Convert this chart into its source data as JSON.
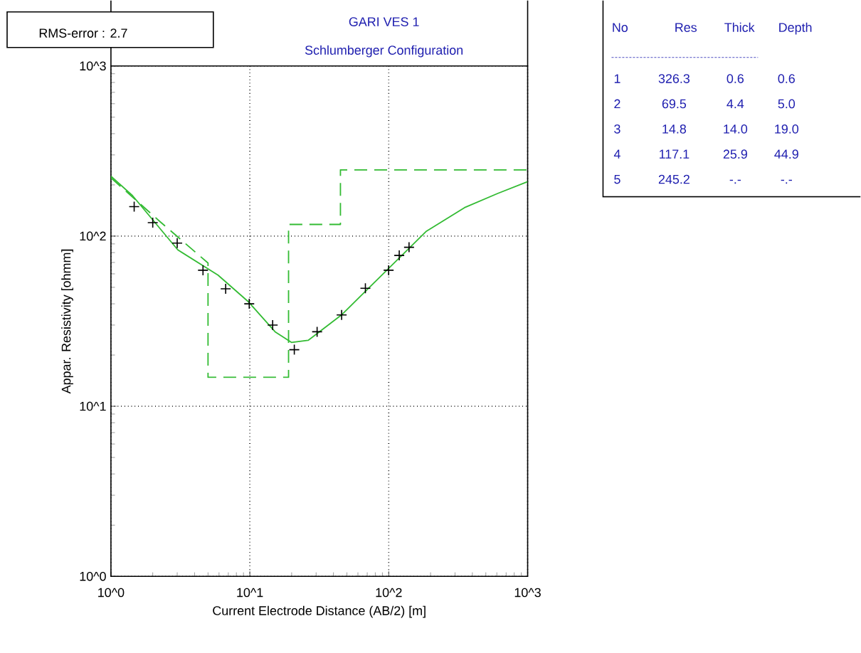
{
  "chart_data": {
    "type": "line",
    "title": "GARI VES 1",
    "subtitle": "Schlumberger Configuration",
    "xlabel": "Current Electrode Distance (AB/2) [m]",
    "ylabel": "Appar. Resistivity [ohmm]",
    "log": "xy",
    "grid": true,
    "xlim": [
      1,
      1000
    ],
    "ylim": [
      1,
      1000
    ],
    "xticks": [
      {
        "value": 1,
        "label": "10^0"
      },
      {
        "value": 10,
        "label": "10^1"
      },
      {
        "value": 100,
        "label": "10^2"
      },
      {
        "value": 1000,
        "label": "10^3"
      }
    ],
    "yticks": [
      {
        "value": 1,
        "label": "10^0"
      },
      {
        "value": 10,
        "label": "10^1"
      },
      {
        "value": 100,
        "label": "10^2"
      },
      {
        "value": 1000,
        "label": "10^3"
      }
    ],
    "series": [
      {
        "type": "scatter",
        "marker": "cross",
        "color": "#000000",
        "x": [
          1.47,
          2.0,
          3.0,
          4.6,
          6.7,
          9.9,
          14.6,
          20.9,
          30.5,
          45.8,
          67.9,
          99.8,
          119,
          140
        ],
        "values": [
          149,
          120,
          91,
          63,
          49,
          40,
          30,
          21.5,
          27.4,
          34.4,
          49.4,
          63,
          77,
          86
        ]
      },
      {
        "color": "#33bb33",
        "line_style": "solid",
        "x": [
          1.0,
          1.43,
          3.03,
          5.9,
          9.8,
          15.2,
          20,
          26.3,
          45.5,
          99.8,
          187,
          351,
          608,
          1000
        ],
        "values": [
          225,
          173,
          83,
          59,
          41,
          27.4,
          23.7,
          24.4,
          34.3,
          64.6,
          107,
          147,
          178,
          209
        ]
      },
      {
        "type": "line",
        "color": "#33bb33",
        "line_style": "dashed",
        "x": [
          1,
          2.3,
          5,
          5,
          19,
          19,
          44.9,
          44.9,
          1000
        ],
        "values": [
          220,
          120,
          69.5,
          14.8,
          14.8,
          117.1,
          117.1,
          245.2,
          245.2
        ]
      }
    ],
    "annotations": [
      "RMS-error :  2.7",
      "No",
      "Res",
      "Thick",
      "Depth",
      "1",
      "326.3",
      "0.6",
      "0.6",
      "2",
      "69.5",
      "4.4",
      "5.0",
      "3",
      "14.8",
      "14.0",
      "19.0",
      "4",
      "117.1",
      "25.9",
      "44.9",
      "5",
      "245.2",
      "-.-",
      "-.-"
    ]
  }
}
